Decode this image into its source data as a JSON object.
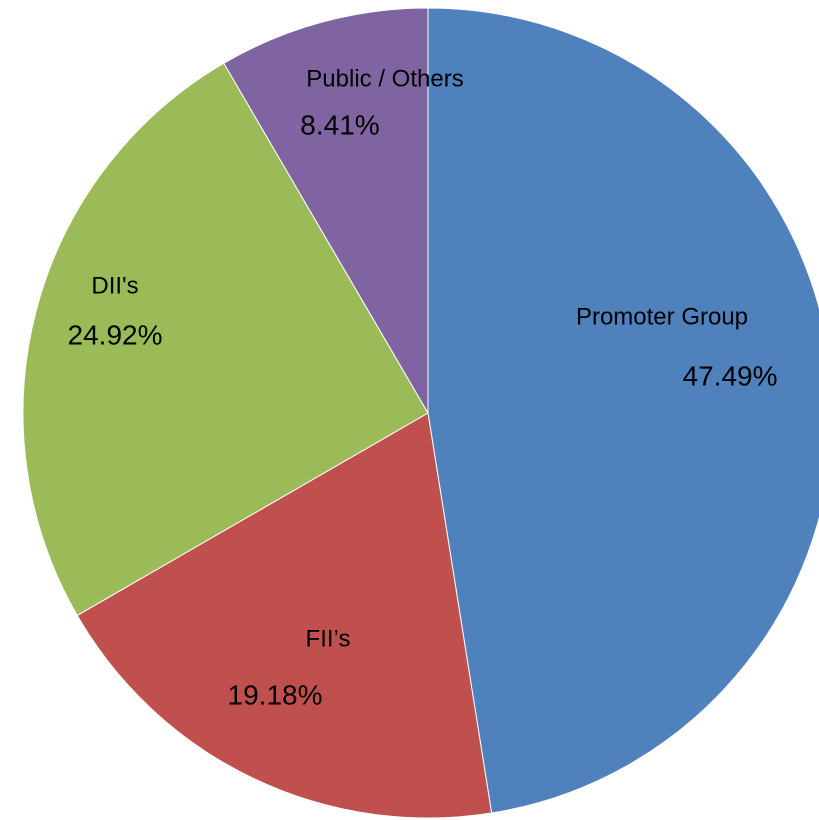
{
  "chart_data": {
    "type": "pie",
    "categories": [
      "Promoter Group",
      "FII’s",
      "DII's",
      "Public / Others"
    ],
    "values": [
      47.49,
      19.18,
      24.92,
      8.41
    ],
    "value_labels": [
      "47.49%",
      "19.18%",
      "24.92%",
      "8.41%"
    ],
    "colors": [
      "#4f81bd",
      "#c0504d",
      "#9bbb59",
      "#8064a2"
    ]
  }
}
